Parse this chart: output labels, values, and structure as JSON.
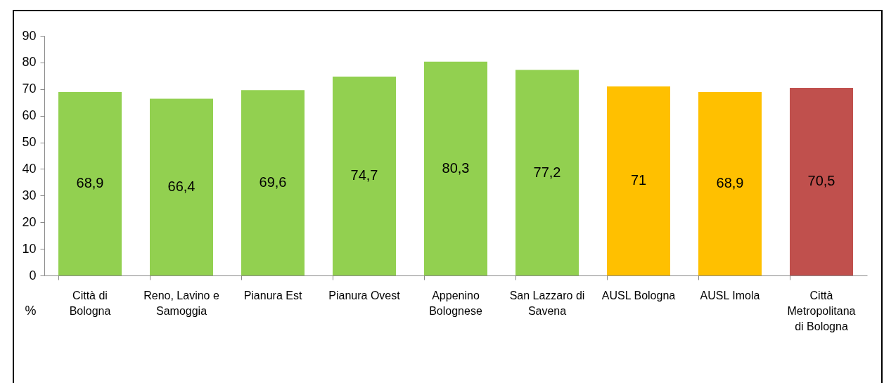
{
  "chart_data": {
    "type": "bar",
    "ylabel": "%",
    "categories": [
      "Città di Bologna",
      "Reno, Lavino e Samoggia",
      "Pianura Est",
      "Pianura Ovest",
      "Appenino Bolognese",
      "San Lazzaro di Savena",
      "AUSL Bologna",
      "AUSL Imola",
      "Città Metropolitana di Bologna"
    ],
    "values": [
      68.9,
      66.4,
      69.6,
      74.7,
      80.3,
      77.2,
      71,
      68.9,
      70.5
    ],
    "value_labels": [
      "68,9",
      "66,4",
      "69,6",
      "74,7",
      "80,3",
      "77,2",
      "71",
      "68,9",
      "70,5"
    ],
    "colors": [
      "#92d050",
      "#92d050",
      "#92d050",
      "#92d050",
      "#92d050",
      "#92d050",
      "#ffc000",
      "#ffc000",
      "#c0504d"
    ],
    "ylim": [
      0,
      90
    ],
    "yticks": [
      0,
      10,
      20,
      30,
      40,
      50,
      60,
      70,
      80,
      90
    ],
    "grid": false
  }
}
